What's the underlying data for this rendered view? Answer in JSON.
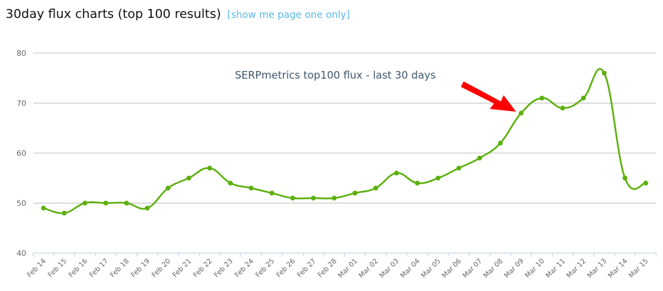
{
  "header": {
    "title": "30day flux charts (top 100 results)",
    "link_label": "[show me page one only]"
  },
  "colors": {
    "line": "#5cb00d",
    "grid": "#c0c0c0",
    "axis": "#c0d0e0",
    "arrow": "#ff0000",
    "link": "#5bb8e6"
  },
  "chart_data": {
    "type": "line",
    "title": "SERPmetrics top100 flux - last 30 days",
    "xlabel": "",
    "ylabel": "",
    "ylim": [
      40,
      80
    ],
    "yticks": [
      40,
      50,
      60,
      70,
      80
    ],
    "grid": true,
    "legend": "none",
    "categories": [
      "Feb 14",
      "Feb 15",
      "Feb 16",
      "Feb 17",
      "Feb 18",
      "Feb 19",
      "Feb 20",
      "Feb 21",
      "Feb 22",
      "Feb 23",
      "Feb 24",
      "Feb 25",
      "Feb 26",
      "Feb 27",
      "Feb 28",
      "Mar 01",
      "Mar 02",
      "Mar 03",
      "Mar 04",
      "Mar 05",
      "Mar 06",
      "Mar 07",
      "Mar 08",
      "Mar 09",
      "Mar 10",
      "Mar 11",
      "Mar 12",
      "Mar 13",
      "Mar 14",
      "Mar 15"
    ],
    "series": [
      {
        "name": "flux",
        "values": [
          49,
          48,
          50,
          50,
          50,
          49,
          53,
          55,
          57,
          54,
          53,
          52,
          51,
          51,
          51,
          52,
          53,
          56,
          54,
          55,
          57,
          59,
          62,
          68,
          71,
          69,
          71,
          76,
          55,
          54
        ]
      }
    ],
    "annotations": [
      {
        "type": "arrow",
        "color": "#ff0000",
        "points_to": "Mar 09"
      }
    ]
  }
}
